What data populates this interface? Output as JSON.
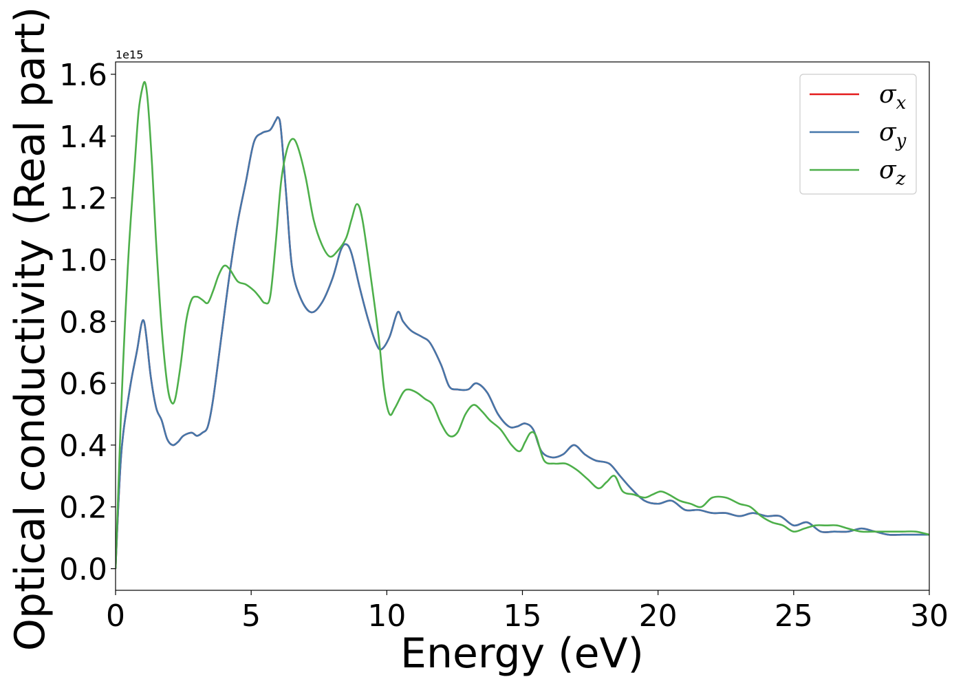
{
  "chart_data": {
    "type": "line",
    "title": "",
    "xlabel": "Energy (eV)",
    "ylabel": "Optical conductivity (Real part)",
    "y_offset_label": "1e15",
    "xlim": [
      0,
      30
    ],
    "ylim": [
      -0.07,
      1.64
    ],
    "xticks": [
      0,
      5,
      10,
      15,
      20,
      25,
      30
    ],
    "xtick_labels": [
      "0",
      "5",
      "10",
      "15",
      "20",
      "25",
      "30"
    ],
    "yticks": [
      0.0,
      0.2,
      0.4,
      0.6,
      0.8,
      1.0,
      1.2,
      1.4,
      1.6
    ],
    "ytick_labels": [
      "0.0",
      "0.2",
      "0.4",
      "0.6",
      "0.8",
      "1.0",
      "1.2",
      "1.4",
      "1.6"
    ],
    "grid": false,
    "legend_position": "top-right",
    "series": [
      {
        "name": "σx",
        "name_base": "σ",
        "name_sub": "x",
        "color": "#e41a1c",
        "x": [
          0,
          0.1,
          0.2,
          0.3,
          0.45,
          0.6,
          0.8,
          0.95,
          1.05,
          1.15,
          1.3,
          1.5,
          1.7,
          1.9,
          2.1,
          2.3,
          2.5,
          2.8,
          3.0,
          3.2,
          3.4,
          3.6,
          3.9,
          4.2,
          4.5,
          4.8,
          5.1,
          5.4,
          5.7,
          5.9,
          6.0,
          6.1,
          6.3,
          6.5,
          6.8,
          7.2,
          7.6,
          8.0,
          8.3,
          8.5,
          8.7,
          9.0,
          9.3,
          9.6,
          9.8,
          10.1,
          10.4,
          10.6,
          10.9,
          11.3,
          11.6,
          12.0,
          12.3,
          12.6,
          13.0,
          13.3,
          13.7,
          14.1,
          14.5,
          14.8,
          15.1,
          15.4,
          15.7,
          16.1,
          16.5,
          16.9,
          17.3,
          17.7,
          18.2,
          18.6,
          19.0,
          19.5,
          20.0,
          20.5,
          21.0,
          21.5,
          22.0,
          22.5,
          23.0,
          23.5,
          24.0,
          24.5,
          25.0,
          25.5,
          26.0,
          26.5,
          27.0,
          27.5,
          28.0,
          28.5,
          29.0,
          29.5,
          30.0
        ],
        "values": [
          0.0,
          0.2,
          0.36,
          0.45,
          0.54,
          0.62,
          0.71,
          0.79,
          0.8,
          0.74,
          0.62,
          0.52,
          0.48,
          0.42,
          0.4,
          0.41,
          0.43,
          0.44,
          0.43,
          0.44,
          0.46,
          0.55,
          0.75,
          0.95,
          1.12,
          1.25,
          1.38,
          1.41,
          1.42,
          1.45,
          1.46,
          1.42,
          1.2,
          0.98,
          0.88,
          0.83,
          0.86,
          0.94,
          1.03,
          1.05,
          1.02,
          0.91,
          0.81,
          0.73,
          0.71,
          0.75,
          0.83,
          0.8,
          0.77,
          0.75,
          0.73,
          0.66,
          0.59,
          0.58,
          0.58,
          0.6,
          0.57,
          0.5,
          0.46,
          0.46,
          0.47,
          0.45,
          0.38,
          0.36,
          0.37,
          0.4,
          0.37,
          0.35,
          0.34,
          0.3,
          0.26,
          0.22,
          0.21,
          0.22,
          0.19,
          0.19,
          0.18,
          0.18,
          0.17,
          0.18,
          0.17,
          0.17,
          0.14,
          0.15,
          0.12,
          0.12,
          0.12,
          0.13,
          0.12,
          0.11,
          0.11,
          0.11,
          0.11
        ]
      },
      {
        "name": "σy",
        "name_base": "σ",
        "name_sub": "y",
        "color": "#4477aa",
        "x": [
          0,
          0.1,
          0.2,
          0.3,
          0.45,
          0.6,
          0.8,
          0.95,
          1.05,
          1.15,
          1.3,
          1.5,
          1.7,
          1.9,
          2.1,
          2.3,
          2.5,
          2.8,
          3.0,
          3.2,
          3.4,
          3.6,
          3.9,
          4.2,
          4.5,
          4.8,
          5.1,
          5.4,
          5.7,
          5.9,
          6.0,
          6.1,
          6.3,
          6.5,
          6.8,
          7.2,
          7.6,
          8.0,
          8.3,
          8.5,
          8.7,
          9.0,
          9.3,
          9.6,
          9.8,
          10.1,
          10.4,
          10.6,
          10.9,
          11.3,
          11.6,
          12.0,
          12.3,
          12.6,
          13.0,
          13.3,
          13.7,
          14.1,
          14.5,
          14.8,
          15.1,
          15.4,
          15.7,
          16.1,
          16.5,
          16.9,
          17.3,
          17.7,
          18.2,
          18.6,
          19.0,
          19.5,
          20.0,
          20.5,
          21.0,
          21.5,
          22.0,
          22.5,
          23.0,
          23.5,
          24.0,
          24.5,
          25.0,
          25.5,
          26.0,
          26.5,
          27.0,
          27.5,
          28.0,
          28.5,
          29.0,
          29.5,
          30.0
        ],
        "values": [
          0.0,
          0.2,
          0.36,
          0.45,
          0.54,
          0.62,
          0.71,
          0.79,
          0.8,
          0.74,
          0.62,
          0.52,
          0.48,
          0.42,
          0.4,
          0.41,
          0.43,
          0.44,
          0.43,
          0.44,
          0.46,
          0.55,
          0.75,
          0.95,
          1.12,
          1.25,
          1.38,
          1.41,
          1.42,
          1.45,
          1.46,
          1.42,
          1.2,
          0.98,
          0.88,
          0.83,
          0.86,
          0.94,
          1.03,
          1.05,
          1.02,
          0.91,
          0.81,
          0.73,
          0.71,
          0.75,
          0.83,
          0.8,
          0.77,
          0.75,
          0.73,
          0.66,
          0.59,
          0.58,
          0.58,
          0.6,
          0.57,
          0.5,
          0.46,
          0.46,
          0.47,
          0.45,
          0.38,
          0.36,
          0.37,
          0.4,
          0.37,
          0.35,
          0.34,
          0.3,
          0.26,
          0.22,
          0.21,
          0.22,
          0.19,
          0.19,
          0.18,
          0.18,
          0.17,
          0.18,
          0.17,
          0.17,
          0.14,
          0.15,
          0.12,
          0.12,
          0.12,
          0.13,
          0.12,
          0.11,
          0.11,
          0.11,
          0.11
        ]
      },
      {
        "name": "σz",
        "name_base": "σ",
        "name_sub": "z",
        "color": "#4daf4a",
        "x": [
          0,
          0.1,
          0.2,
          0.35,
          0.5,
          0.7,
          0.85,
          1.0,
          1.1,
          1.2,
          1.35,
          1.5,
          1.7,
          1.9,
          2.05,
          2.2,
          2.4,
          2.6,
          2.8,
          3.0,
          3.2,
          3.4,
          3.6,
          3.8,
          4.0,
          4.2,
          4.5,
          4.8,
          5.1,
          5.3,
          5.5,
          5.7,
          5.9,
          6.1,
          6.3,
          6.5,
          6.7,
          7.0,
          7.3,
          7.6,
          7.9,
          8.2,
          8.5,
          8.7,
          8.9,
          9.1,
          9.4,
          9.7,
          9.9,
          10.1,
          10.3,
          10.6,
          10.8,
          11.1,
          11.4,
          11.7,
          12.0,
          12.3,
          12.6,
          12.9,
          13.2,
          13.5,
          13.8,
          14.2,
          14.6,
          14.9,
          15.1,
          15.3,
          15.5,
          15.8,
          16.2,
          16.6,
          17.0,
          17.4,
          17.8,
          18.1,
          18.4,
          18.7,
          19.1,
          19.5,
          19.8,
          20.1,
          20.4,
          20.8,
          21.2,
          21.6,
          22.0,
          22.5,
          23.0,
          23.4,
          23.8,
          24.2,
          24.6,
          25.0,
          25.4,
          25.8,
          26.2,
          26.6,
          27.0,
          27.5,
          28.0,
          28.5,
          29.0,
          29.5,
          30.0
        ],
        "values": [
          0.0,
          0.25,
          0.5,
          0.8,
          1.05,
          1.3,
          1.48,
          1.56,
          1.57,
          1.5,
          1.3,
          1.05,
          0.78,
          0.6,
          0.54,
          0.55,
          0.66,
          0.8,
          0.87,
          0.88,
          0.87,
          0.86,
          0.9,
          0.95,
          0.98,
          0.97,
          0.93,
          0.92,
          0.9,
          0.88,
          0.86,
          0.88,
          1.05,
          1.25,
          1.35,
          1.39,
          1.37,
          1.27,
          1.13,
          1.05,
          1.01,
          1.03,
          1.07,
          1.13,
          1.18,
          1.13,
          0.95,
          0.75,
          0.58,
          0.5,
          0.52,
          0.57,
          0.58,
          0.57,
          0.55,
          0.53,
          0.47,
          0.43,
          0.44,
          0.5,
          0.53,
          0.51,
          0.48,
          0.45,
          0.4,
          0.38,
          0.41,
          0.44,
          0.43,
          0.35,
          0.34,
          0.34,
          0.32,
          0.29,
          0.26,
          0.28,
          0.3,
          0.25,
          0.24,
          0.23,
          0.24,
          0.25,
          0.24,
          0.22,
          0.21,
          0.2,
          0.23,
          0.23,
          0.21,
          0.2,
          0.17,
          0.15,
          0.14,
          0.12,
          0.13,
          0.14,
          0.14,
          0.14,
          0.13,
          0.12,
          0.12,
          0.12,
          0.12,
          0.12,
          0.11
        ]
      }
    ]
  }
}
